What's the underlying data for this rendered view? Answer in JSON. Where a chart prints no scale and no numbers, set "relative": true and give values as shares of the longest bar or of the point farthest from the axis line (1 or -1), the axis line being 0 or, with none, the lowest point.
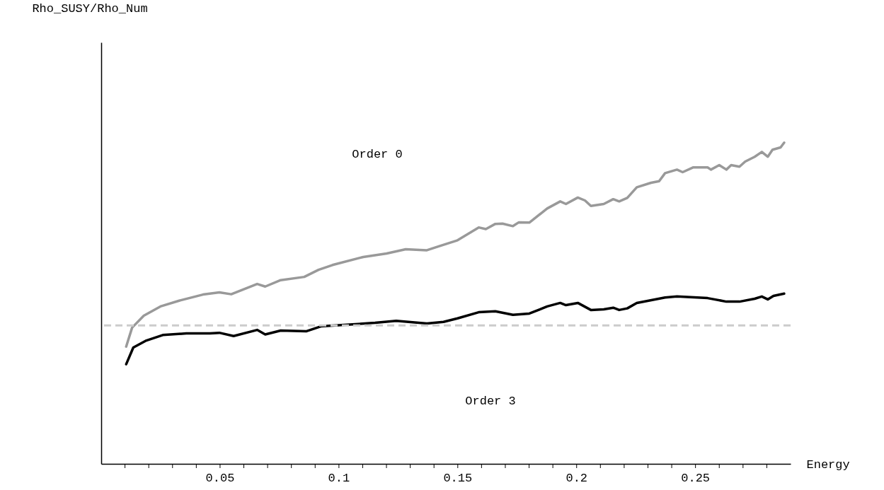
{
  "chart_data": {
    "type": "line",
    "xlabel": "Energy",
    "relative": true,
    "xlim": [
      0,
      0.29
    ],
    "xticks": [
      {
        "value": 0.01,
        "label": null
      },
      {
        "value": 0.02,
        "label": null
      },
      {
        "value": 0.03,
        "label": null
      },
      {
        "value": 0.04,
        "label": null
      },
      0.05,
      {
        "value": 0.06,
        "label": null
      },
      {
        "value": 0.07,
        "label": null
      },
      {
        "value": 0.08,
        "label": null
      },
      {
        "value": 0.09,
        "label": null
      },
      0.1,
      {
        "value": 0.11,
        "label": null
      },
      {
        "value": 0.12,
        "label": null
      },
      {
        "value": 0.13,
        "label": null
      },
      {
        "value": 0.14,
        "label": null
      },
      0.15,
      {
        "value": 0.16,
        "label": null
      },
      {
        "value": 0.17,
        "label": null
      },
      {
        "value": 0.18,
        "label": null
      },
      {
        "value": 0.19,
        "label": null
      },
      0.2,
      {
        "value": 0.21,
        "label": null
      },
      {
        "value": 0.22,
        "label": null
      },
      {
        "value": 0.23,
        "label": null
      },
      {
        "value": 0.24,
        "label": null
      },
      0.25,
      {
        "value": 0.26,
        "label": null
      },
      {
        "value": 0.27,
        "label": null
      },
      {
        "value": 0.28,
        "label": null
      }
    ],
    "grid": false,
    "marker": "none",
    "line_style": "solid",
    "annotations": [
      "Rho_SUSY/Rho_Num",
      "Order 0",
      "Order 3"
    ],
    "series": [
      {
        "color": "#999999",
        "x": [
          0.0105,
          0.013,
          0.0179,
          0.0249,
          0.0328,
          0.0428,
          0.0497,
          0.0547,
          0.0656,
          0.069,
          0.0755,
          0.0854,
          0.0914,
          0.0973,
          0.1102,
          0.1201,
          0.1281,
          0.137,
          0.142,
          0.1499,
          0.1588,
          0.1618,
          0.1658,
          0.1688,
          0.1732,
          0.1757,
          0.1801,
          0.1876,
          0.1931,
          0.1955,
          0.2005,
          0.2035,
          0.206,
          0.2114,
          0.2154,
          0.2179,
          0.2213,
          0.2253,
          0.2313,
          0.2347,
          0.2372,
          0.2422,
          0.2446,
          0.2491,
          0.2551,
          0.2565,
          0.26,
          0.263,
          0.265,
          0.2685,
          0.2709,
          0.2749,
          0.2779,
          0.2804,
          0.2824,
          0.2858,
          0.2873
        ],
        "values": [
          0.365,
          0.424,
          0.461,
          0.49,
          0.508,
          0.527,
          0.534,
          0.528,
          0.56,
          0.552,
          0.572,
          0.582,
          0.604,
          0.619,
          0.644,
          0.655,
          0.668,
          0.665,
          0.677,
          0.696,
          0.736,
          0.731,
          0.747,
          0.748,
          0.74,
          0.752,
          0.751,
          0.795,
          0.817,
          0.809,
          0.829,
          0.82,
          0.803,
          0.809,
          0.824,
          0.817,
          0.828,
          0.861,
          0.875,
          0.88,
          0.905,
          0.916,
          0.908,
          0.923,
          0.923,
          0.916,
          0.93,
          0.916,
          0.93,
          0.925,
          0.941,
          0.956,
          0.971,
          0.956,
          0.978,
          0.985,
          1.0
        ]
      },
      {
        "color": "#000000",
        "x": [
          0.0105,
          0.0135,
          0.019,
          0.0259,
          0.0358,
          0.0457,
          0.0497,
          0.0557,
          0.0656,
          0.069,
          0.0755,
          0.0864,
          0.0924,
          0.1033,
          0.1152,
          0.1241,
          0.137,
          0.144,
          0.1499,
          0.1588,
          0.1658,
          0.1732,
          0.1801,
          0.1876,
          0.1931,
          0.1955,
          0.2005,
          0.206,
          0.2114,
          0.2154,
          0.2179,
          0.2213,
          0.2253,
          0.2372,
          0.2422,
          0.2551,
          0.263,
          0.2685,
          0.2749,
          0.2779,
          0.2804,
          0.2828,
          0.2873
        ],
        "values": [
          0.31,
          0.362,
          0.384,
          0.401,
          0.406,
          0.406,
          0.408,
          0.398,
          0.417,
          0.403,
          0.415,
          0.413,
          0.428,
          0.433,
          0.439,
          0.445,
          0.437,
          0.442,
          0.453,
          0.472,
          0.475,
          0.464,
          0.468,
          0.49,
          0.501,
          0.494,
          0.501,
          0.479,
          0.481,
          0.486,
          0.479,
          0.484,
          0.501,
          0.518,
          0.521,
          0.516,
          0.505,
          0.505,
          0.514,
          0.521,
          0.512,
          0.523,
          0.53
        ]
      }
    ],
    "ref_lines": [
      {
        "axis": "y",
        "value": 0.431,
        "color": "#cccccc",
        "line_style": "dashed"
      }
    ]
  }
}
